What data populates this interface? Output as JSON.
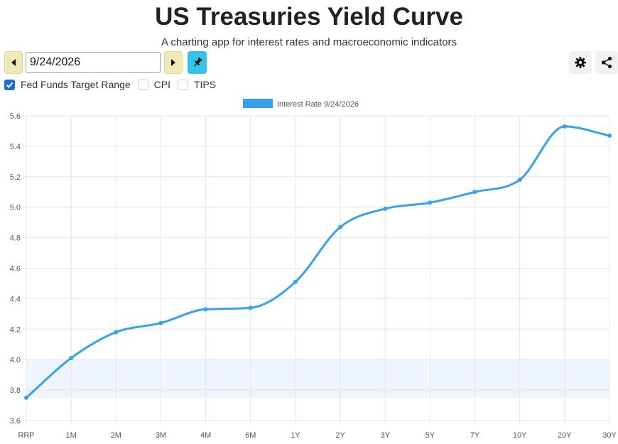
{
  "app": {
    "title": "US Treasuries Yield Curve",
    "subtitle": "A charting app for interest rates and macroeconomic indicators"
  },
  "controls": {
    "date_value": "9/24/2026",
    "prev_icon": "triangle-left-icon",
    "next_icon": "triangle-right-icon",
    "pin_icon": "pin-icon",
    "settings_icon": "gear-icon",
    "share_icon": "share-icon",
    "checkboxes": [
      {
        "label": "Fed Funds Target Range",
        "checked": true
      },
      {
        "label": "CPI",
        "checked": false
      },
      {
        "label": "TIPS",
        "checked": false
      }
    ]
  },
  "colors": {
    "line": "#36a2eb",
    "legend_box": "#36a2eb",
    "fed_band": "#eef5fc",
    "grid": "#e6e6e6",
    "nav_button": "#efe9b8",
    "pin_button": "#33c3ea",
    "checkbox_checked": "#1a6fd6"
  },
  "chart_data": {
    "type": "line",
    "title": "",
    "xlabel": "",
    "ylabel": "",
    "categories": [
      "RRP",
      "1M",
      "2M",
      "3M",
      "4M",
      "6M",
      "1Y",
      "2Y",
      "3Y",
      "5Y",
      "7Y",
      "10Y",
      "20Y",
      "30Y"
    ],
    "series": [
      {
        "name": "Interest Rate 9/24/2026",
        "values": [
          3.75,
          4.01,
          4.18,
          4.24,
          4.33,
          4.34,
          4.51,
          4.87,
          4.99,
          5.03,
          5.1,
          5.18,
          5.53,
          5.47
        ]
      }
    ],
    "fed_funds_target_range": [
      3.75,
      4.0
    ],
    "ylim": [
      3.6,
      5.6
    ],
    "yticks": [
      "3.6",
      "3.8",
      "4.0",
      "4.2",
      "4.4",
      "4.6",
      "4.8",
      "5.0",
      "5.2",
      "5.4",
      "5.6"
    ],
    "grid": true,
    "legend_position": "top",
    "smooth": true
  }
}
